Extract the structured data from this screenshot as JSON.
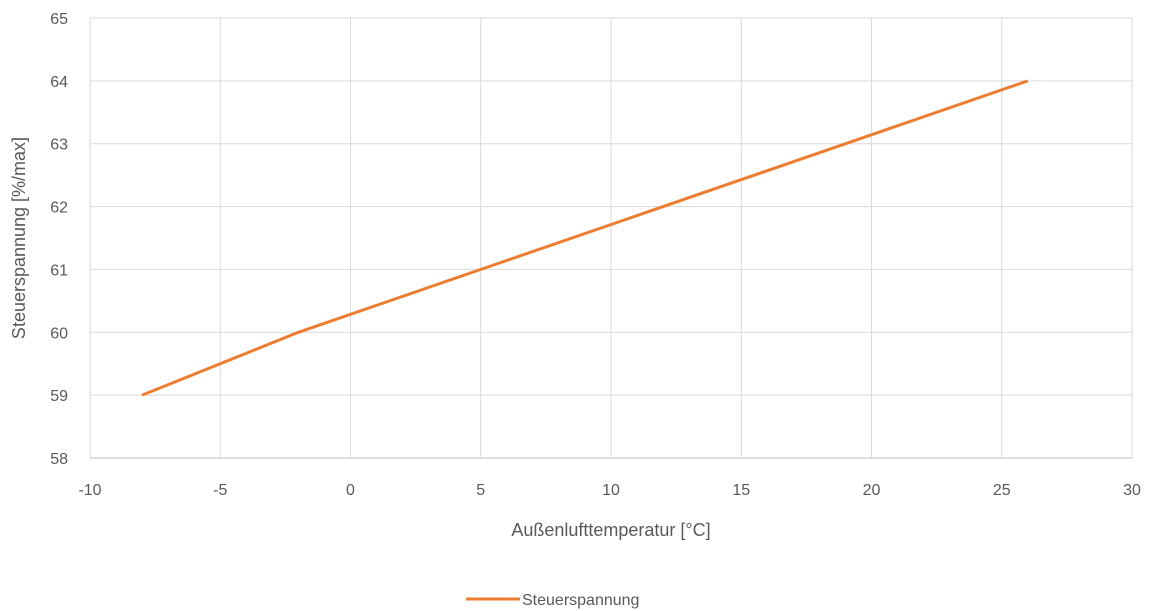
{
  "chart_data": {
    "type": "line",
    "xlabel": "Außenlufttemperatur [°C]",
    "ylabel": "Steuerspannung [%/max]",
    "xlim": [
      -10,
      30
    ],
    "ylim": [
      58,
      65
    ],
    "x_ticks": [
      -10,
      -5,
      0,
      5,
      10,
      15,
      20,
      25,
      30
    ],
    "y_ticks": [
      58,
      59,
      60,
      61,
      62,
      63,
      64,
      65
    ],
    "x_tick_labels": [
      "-10",
      "-5",
      "0",
      "5",
      "10",
      "15",
      "20",
      "25",
      "30"
    ],
    "y_tick_labels": [
      "58",
      "59",
      "60",
      "61",
      "62",
      "63",
      "64",
      "65"
    ],
    "grid": true,
    "legend": "bottom",
    "series": [
      {
        "name": "Steuerspannung",
        "color": "#ed7d31",
        "x": [
          -8,
          -2,
          26
        ],
        "y": [
          59,
          60,
          64
        ]
      }
    ]
  }
}
